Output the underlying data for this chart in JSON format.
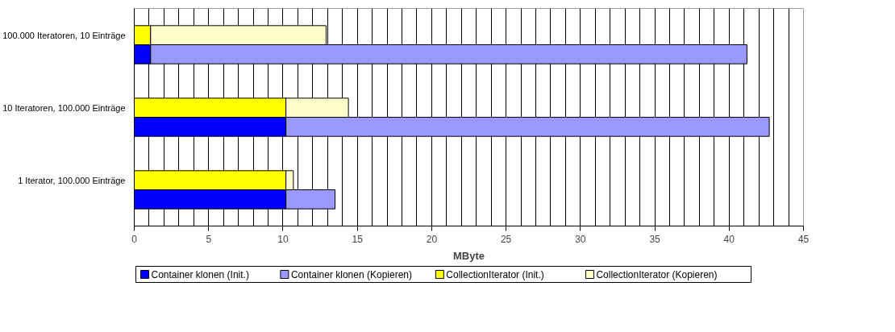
{
  "chart_data": {
    "type": "bar",
    "orientation": "horizontal",
    "stacked": true,
    "categories": [
      "100.000 Iteratoren, 10 Einträge",
      null,
      "10 Iteratoren, 100.000 Einträge",
      null,
      "1 Iterator, 100.000 Einträge",
      null
    ],
    "series": [
      {
        "name": "Container klonen (Init.)",
        "color": "#0000ff",
        "values": [
          null,
          1.1,
          null,
          10.2,
          null,
          10.2
        ]
      },
      {
        "name": "Container klonen (Kopieren)",
        "color": "#9999ff",
        "values": [
          null,
          40.1,
          null,
          32.5,
          null,
          3.3
        ]
      },
      {
        "name": "CollectionIterator (Init.)",
        "color": "#ffff00",
        "values": [
          1.1,
          null,
          10.2,
          null,
          10.2,
          null
        ]
      },
      {
        "name": "CollectionIterator (Kopieren)",
        "color": "#ffffcc",
        "values": [
          11.8,
          null,
          4.2,
          null,
          0.5,
          null
        ]
      }
    ],
    "xlabel": "MByte",
    "xlim": [
      0,
      45
    ],
    "xticks": [
      0,
      {
        "value": 1,
        "label": null
      },
      {
        "value": 2,
        "label": null
      },
      {
        "value": 3,
        "label": null
      },
      {
        "value": 4,
        "label": null
      },
      5,
      {
        "value": 6,
        "label": null
      },
      {
        "value": 7,
        "label": null
      },
      {
        "value": 8,
        "label": null
      },
      {
        "value": 9,
        "label": null
      },
      10,
      {
        "value": 11,
        "label": null
      },
      {
        "value": 12,
        "label": null
      },
      {
        "value": 13,
        "label": null
      },
      {
        "value": 14,
        "label": null
      },
      15,
      {
        "value": 16,
        "label": null
      },
      {
        "value": 17,
        "label": null
      },
      {
        "value": 18,
        "label": null
      },
      {
        "value": 19,
        "label": null
      },
      20,
      {
        "value": 21,
        "label": null
      },
      {
        "value": 22,
        "label": null
      },
      {
        "value": 23,
        "label": null
      },
      {
        "value": 24,
        "label": null
      },
      25,
      {
        "value": 26,
        "label": null
      },
      {
        "value": 27,
        "label": null
      },
      {
        "value": 28,
        "label": null
      },
      {
        "value": 29,
        "label": null
      },
      30,
      {
        "value": 31,
        "label": null
      },
      {
        "value": 32,
        "label": null
      },
      {
        "value": 33,
        "label": null
      },
      {
        "value": 34,
        "label": null
      },
      35,
      {
        "value": 36,
        "label": null
      },
      {
        "value": 37,
        "label": null
      },
      {
        "value": 38,
        "label": null
      },
      {
        "value": 39,
        "label": null
      },
      40,
      {
        "value": 41,
        "label": null
      },
      {
        "value": 42,
        "label": null
      },
      {
        "value": 43,
        "label": null
      },
      {
        "value": 44,
        "label": null
      },
      45
    ],
    "grid": "x",
    "legend": "bottom"
  }
}
